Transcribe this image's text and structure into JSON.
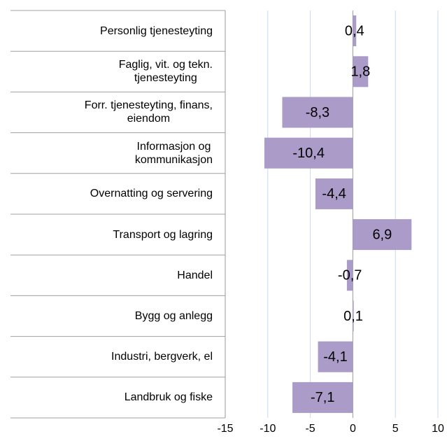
{
  "chart_data": {
    "type": "hbar",
    "categories": [
      "Personlig tjenesteyting",
      "Faglig, vit. og tekn.\ntjenesteyting",
      "Forr. tjenesteyting, finans,\neiendom",
      "Informasjon og\nkommunikasjon",
      "Overnatting og servering",
      "Transport og lagring",
      "Handel",
      "Bygg og anlegg",
      "Industri, bergverk, el",
      "Landbruk og fiske"
    ],
    "values": [
      0.4,
      1.8,
      -8.3,
      -10.4,
      -4.4,
      6.9,
      -0.7,
      0.1,
      -4.1,
      -7.1
    ],
    "value_labels": [
      "0,4",
      "1,8",
      "-8,3",
      "-10,4",
      "-4,4",
      "6,9",
      "-0,7",
      "0,1",
      "-4,1",
      "-7,1"
    ],
    "color": "#ab9bc9",
    "xlim": [
      -15,
      10
    ],
    "xticks": [
      -15,
      -10,
      -5,
      0,
      5,
      10
    ],
    "grid": true
  }
}
